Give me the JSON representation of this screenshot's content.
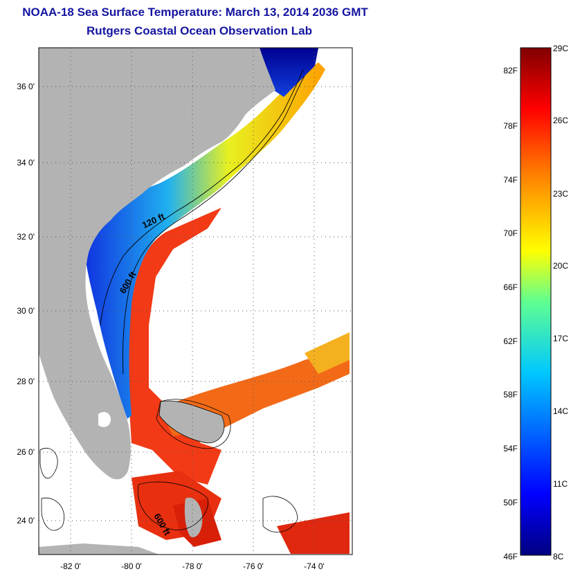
{
  "header": {
    "title": "NOAA-18 Sea Surface Temperature:  March 13, 2014 2036 GMT",
    "subtitle": "Rutgers Coastal Ocean Observation Lab"
  },
  "map": {
    "lat_labels": [
      "36 0'",
      "34 0'",
      "32 0'",
      "30 0'",
      "28 0'",
      "26 0'",
      "24 0'"
    ],
    "lon_labels": [
      "-82 0'",
      "-80 0'",
      "-78 0'",
      "-76 0'",
      "-74 0'"
    ],
    "contour_labels": [
      "120 ft",
      "600 ft",
      "600 ft"
    ]
  },
  "colorbar": {
    "fahrenheit_labels": [
      "82F",
      "78F",
      "74F",
      "70F",
      "66F",
      "62F",
      "58F",
      "54F",
      "50F",
      "46F"
    ],
    "celsius_labels": [
      "29C",
      "26C",
      "23C",
      "20C",
      "17C",
      "14C",
      "11C",
      "8C"
    ],
    "colors": [
      "#800000",
      "#ff0000",
      "#ff8000",
      "#ffff00",
      "#80ff80",
      "#00ffff",
      "#0080ff",
      "#0000ff",
      "#000080"
    ]
  },
  "colors": {
    "title": "#1414a0",
    "land": "#b3b3b3",
    "ocean_blank": "#ffffff"
  }
}
